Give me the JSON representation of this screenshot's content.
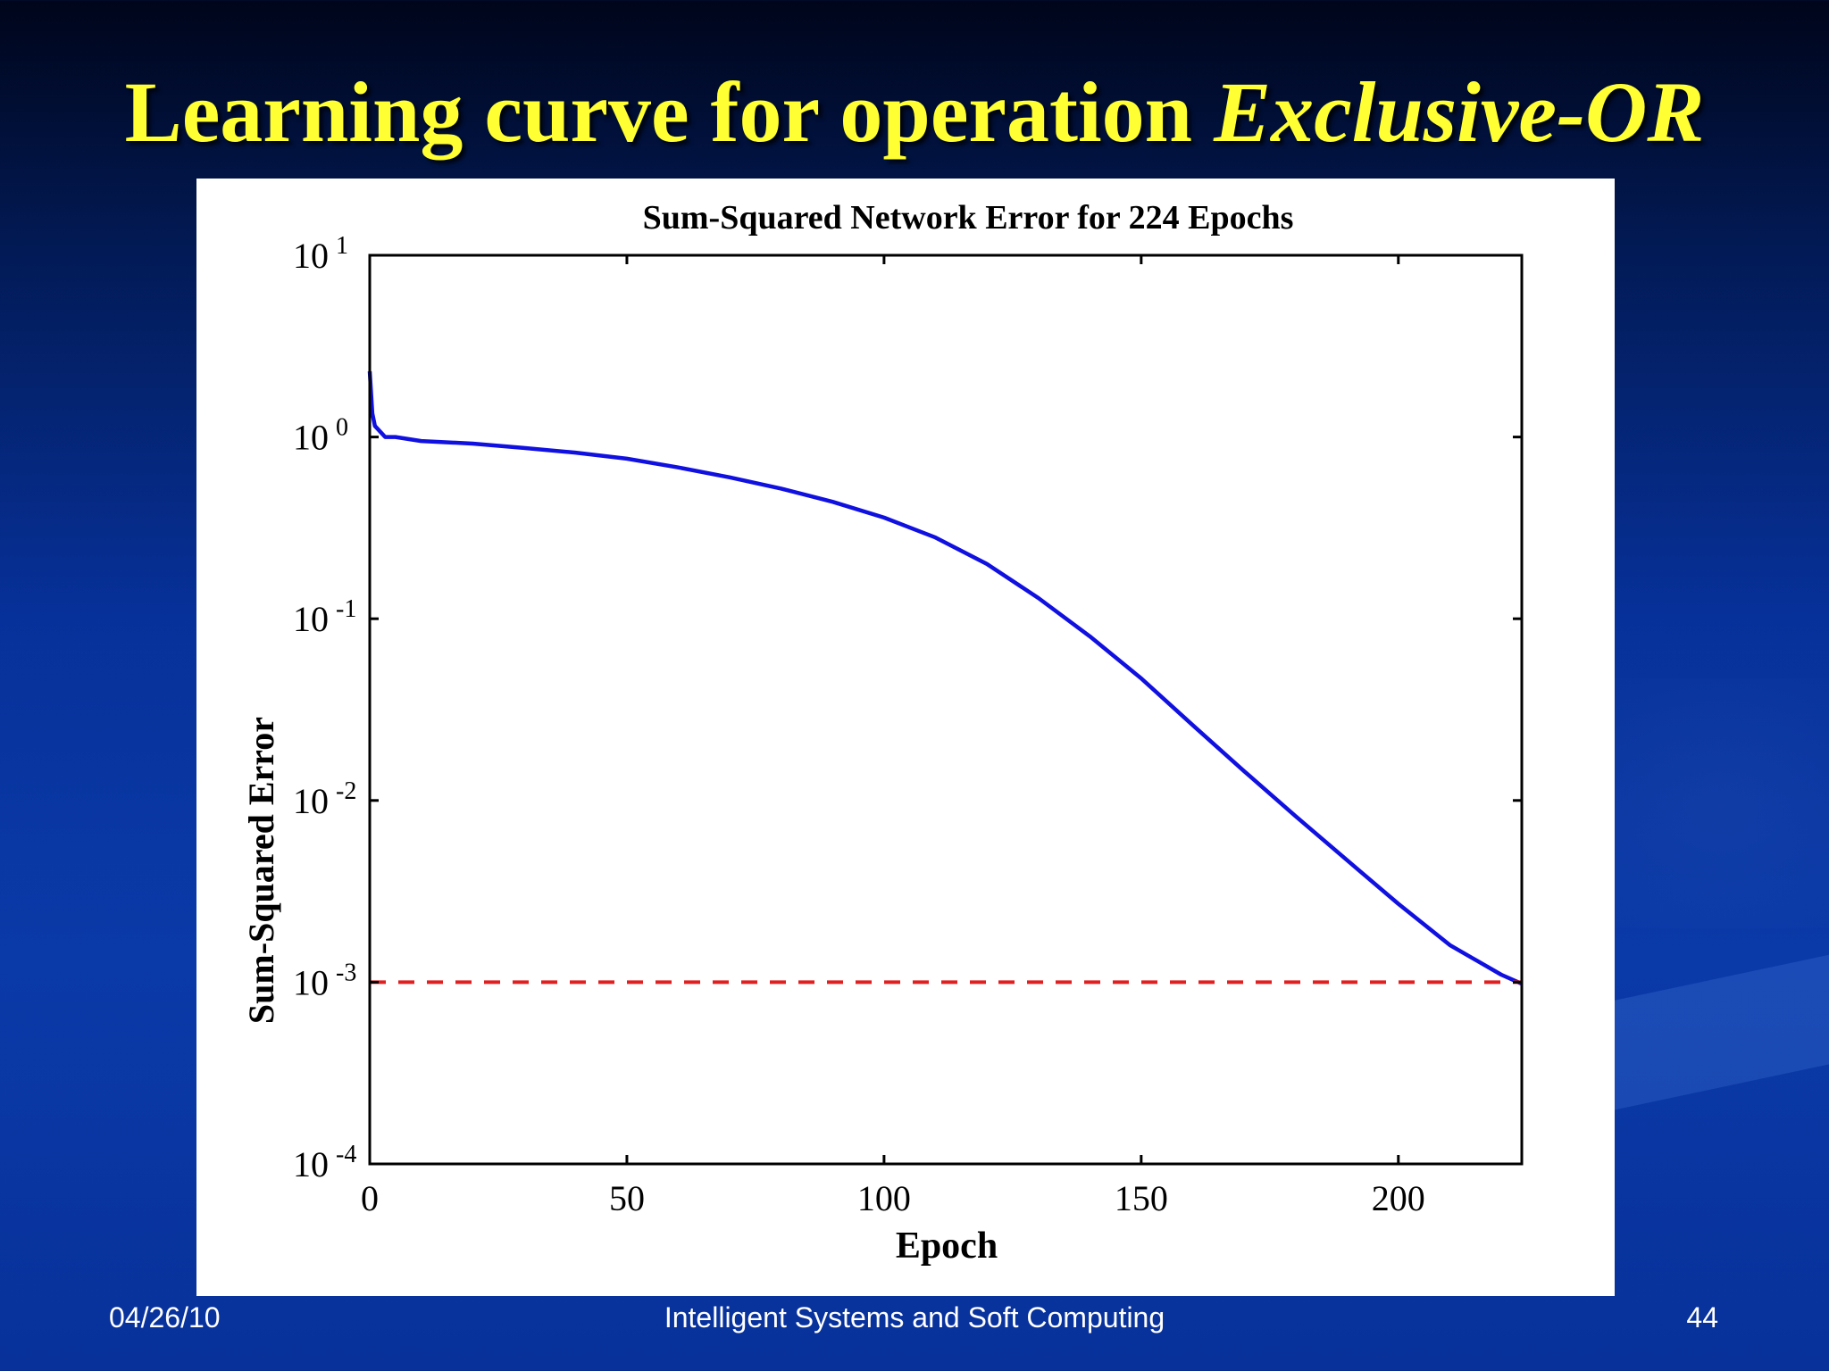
{
  "slide": {
    "title_main": "Learning curve for operation ",
    "title_emph": "Exclusive-OR",
    "footer_date": "04/26/10",
    "footer_course": "Intelligent Systems and Soft Computing",
    "footer_page": "44"
  },
  "colors": {
    "title": "#ffff33",
    "curve": "#1010e0",
    "goal": "#e02020"
  },
  "chart_data": {
    "type": "line",
    "title": "Sum-Squared Network Error for 224 Epochs",
    "xlabel": "Epoch",
    "ylabel": "Sum-Squared Error",
    "xlim": [
      0,
      224
    ],
    "ylim": [
      0.0001,
      10
    ],
    "yscale": "log",
    "xticks": [
      0,
      50,
      100,
      150,
      200
    ],
    "xtick_labels": [
      "0",
      "50",
      "100",
      "150",
      "200"
    ],
    "yticks": [
      {
        "base": "10",
        "exp": "1",
        "value": 10
      },
      {
        "base": "10",
        "exp": "0",
        "value": 1
      },
      {
        "base": "10",
        "exp": "-1",
        "value": 0.1
      },
      {
        "base": "10",
        "exp": "-2",
        "value": 0.01
      },
      {
        "base": "10",
        "exp": "-3",
        "value": 0.001
      },
      {
        "base": "10",
        "exp": "-4",
        "value": 0.0001
      }
    ],
    "grid": false,
    "series": [
      {
        "style": "solid",
        "x": [
          0,
          0.5,
          1,
          3,
          5,
          10,
          20,
          30,
          40,
          50,
          60,
          70,
          80,
          90,
          100,
          110,
          120,
          130,
          140,
          150,
          160,
          170,
          180,
          190,
          200,
          210,
          220,
          224
        ],
        "y": [
          2.3,
          1.35,
          1.15,
          1.0,
          1.0,
          0.95,
          0.92,
          0.87,
          0.82,
          0.76,
          0.68,
          0.6,
          0.52,
          0.44,
          0.36,
          0.28,
          0.2,
          0.13,
          0.08,
          0.047,
          0.026,
          0.0145,
          0.0082,
          0.0047,
          0.0027,
          0.0016,
          0.0011,
          0.00098
        ]
      },
      {
        "style": "dashed",
        "x": [
          0,
          224
        ],
        "y": [
          0.001,
          0.001
        ]
      }
    ]
  }
}
